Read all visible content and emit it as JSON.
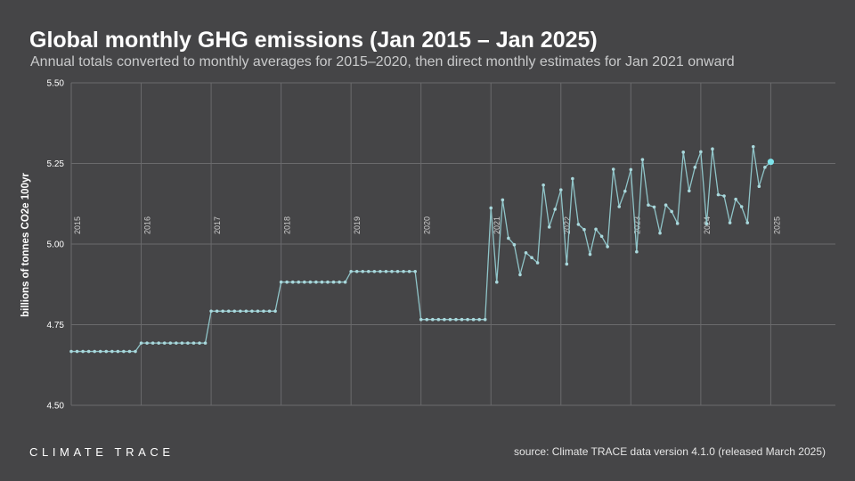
{
  "header": {
    "title": "Global monthly GHG emissions (Jan 2015 – Jan 2025)",
    "subtitle": "Annual totals converted to monthly averages for 2015–2020, then direct monthly estimates for Jan 2021 onward"
  },
  "footer": {
    "brand": "CLIMATE TRACE",
    "source": "source: Climate TRACE data version 4.1.0 (released March 2025)"
  },
  "colors": {
    "background": "#454547",
    "line": "#8fc4c8",
    "marker": "#a9d8dc",
    "highlight": "#7ee3ea",
    "grid": "#6a6a6c"
  },
  "chart_data": {
    "type": "line",
    "title": "Global monthly GHG emissions (Jan 2015 – Jan 2025)",
    "ylabel": "billions of tonnes CO2e 100yr",
    "xlabel": "",
    "ylim": [
      4.5,
      5.5
    ],
    "yticks": [
      "4.50",
      "4.75",
      "5.00",
      "5.25",
      "5.50"
    ],
    "xticks": [
      "2015",
      "2016",
      "2017",
      "2018",
      "2019",
      "2020",
      "2021",
      "2022",
      "2023",
      "2024",
      "2025"
    ],
    "grid": true,
    "x_start": "2015-01",
    "x_end": "2025-01",
    "annual_monthly_averages": [
      {
        "year": "2015",
        "value": 4.667
      },
      {
        "year": "2016",
        "value": 4.693
      },
      {
        "year": "2017",
        "value": 4.792
      },
      {
        "year": "2018",
        "value": 4.882
      },
      {
        "year": "2019",
        "value": 4.915
      },
      {
        "year": "2020",
        "value": 4.766
      }
    ],
    "monthly_2021_onward": [
      5.112,
      4.882,
      5.137,
      5.018,
      4.998,
      4.905,
      4.973,
      4.958,
      4.942,
      5.183,
      5.053,
      5.108,
      5.168,
      4.938,
      5.203,
      5.061,
      5.045,
      4.968,
      5.046,
      5.024,
      4.992,
      5.232,
      5.116,
      5.164,
      5.231,
      4.976,
      5.262,
      5.121,
      5.115,
      5.034,
      5.121,
      5.101,
      5.064,
      5.285,
      5.165,
      5.238,
      5.286,
      5.063,
      5.295,
      5.153,
      5.149,
      5.066,
      5.139,
      5.116,
      5.066,
      5.302,
      5.179,
      5.238,
      5.255
    ],
    "highlighted_point": {
      "x": "2025-01",
      "value": 5.255
    }
  }
}
